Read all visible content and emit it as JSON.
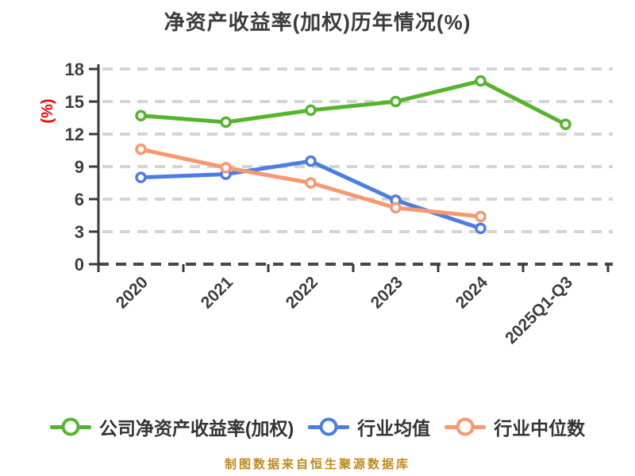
{
  "title": "净资产收益率(加权)历年情况(%)",
  "y_axis_name": "(%)",
  "source_note": "制图数据来自恒生聚源数据库",
  "styles": {
    "company_green": "#55b42e",
    "industry_blue": "#4d7de2",
    "median_orange": "#f89870",
    "grid_gray": "#d4d4d4",
    "axis_dark": "#3a3a3a",
    "x_axis_dash": "#474747",
    "tick_text": "#3d3d3d",
    "y_name_red": "#fe0000",
    "source_gold": "#bf8a1d",
    "title_color": "#3b3b3b",
    "marker_fill": "#ffffff"
  },
  "legend": {
    "items": [
      {
        "label": "公司净资产收益率(加权)"
      },
      {
        "label": "行业均值"
      },
      {
        "label": "行业中位数"
      }
    ]
  },
  "chart_data": {
    "type": "line",
    "title": "净资产收益率(加权)历年情况(%)",
    "categories": [
      "2020",
      "2021",
      "2022",
      "2023",
      "2024",
      "2025Q1-Q3"
    ],
    "series": [
      {
        "name": "公司净资产收益率(加权)",
        "color": "#55b42e",
        "values": [
          13.7,
          13.1,
          14.2,
          15.0,
          16.9,
          12.9
        ]
      },
      {
        "name": "行业均值",
        "color": "#4d7de2",
        "values": [
          8.0,
          8.3,
          9.5,
          5.9,
          3.3,
          null
        ]
      },
      {
        "name": "行业中位数",
        "color": "#f89870",
        "values": [
          10.6,
          8.9,
          7.5,
          5.2,
          4.4,
          null
        ]
      }
    ],
    "xlabel": "",
    "ylabel": "(%)",
    "ylim": [
      0,
      18
    ],
    "yticks": [
      0,
      3,
      6,
      9,
      12,
      15,
      18
    ],
    "x_label_rotation": 45,
    "grid": true,
    "grid_line_style": "dashed",
    "legend_position": "bottom",
    "marker_style": "circle-white-fill"
  }
}
